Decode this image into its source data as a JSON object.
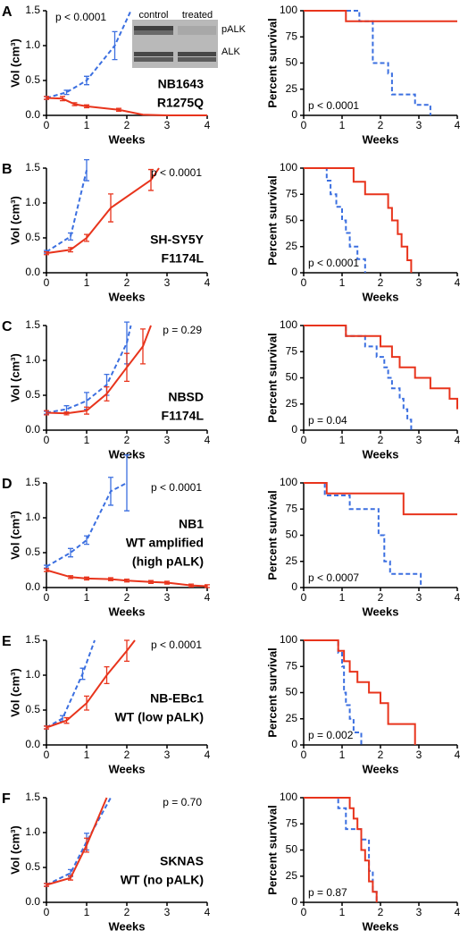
{
  "chart_data": [
    {
      "type": "line",
      "panel": "A",
      "ylabel": "Vol (cm³)",
      "xlabel": "Weeks",
      "p_value": "p < 0.0001",
      "labels": [
        "NB1643",
        "R1275Q"
      ],
      "inset": {
        "columns": [
          "control",
          "treated"
        ],
        "rows": [
          "pALK",
          "ALK"
        ]
      },
      "xlim": [
        0,
        4
      ],
      "xticks": [
        0,
        1,
        2,
        3,
        4
      ],
      "ylim": [
        0,
        1.5
      ],
      "yticks": [
        {
          "value": 0,
          "label": "0.0"
        },
        0.5,
        {
          "value": 1,
          "label": "1.0"
        },
        1.5
      ],
      "series": [
        {
          "color": "#3b6fe0",
          "dash": true,
          "x": [
            0,
            0.5,
            1.0,
            1.7,
            2.1
          ],
          "values": [
            0.25,
            0.33,
            0.5,
            1.0,
            1.5
          ],
          "errors": [
            0.02,
            0.03,
            0.06,
            0.2,
            null
          ]
        },
        {
          "color": "#e8341c",
          "dash": false,
          "x": [
            0,
            0.4,
            0.7,
            1.0,
            1.8,
            2.4,
            3.0,
            4.0
          ],
          "values": [
            0.25,
            0.24,
            0.16,
            0.13,
            0.08,
            0.01,
            0,
            0
          ],
          "errors": [
            0.02,
            0.03,
            0.02,
            0.02,
            0.02,
            null,
            null,
            null
          ]
        }
      ]
    },
    {
      "type": "step",
      "ylabel": "Percent survival",
      "xlabel": "Weeks",
      "p_value": "p < 0.0001",
      "xlim": [
        0,
        4
      ],
      "xticks": [
        0,
        1,
        2,
        3,
        4
      ],
      "ylim": [
        0,
        100
      ],
      "yticks": [
        0,
        25,
        50,
        75,
        100
      ],
      "series": [
        {
          "color": "#3b6fe0",
          "dash": true,
          "x": [
            0,
            1.45,
            1.8,
            2.2,
            2.3,
            2.9,
            3.3
          ],
          "values": [
            100,
            90,
            50,
            40,
            20,
            10,
            0
          ]
        },
        {
          "color": "#e8341c",
          "dash": false,
          "x": [
            0,
            1.1,
            4.0
          ],
          "values": [
            100,
            90,
            90
          ]
        }
      ]
    },
    {
      "type": "line",
      "panel": "B",
      "ylabel": "Vol (cm³)",
      "xlabel": "Weeks",
      "p_value": "p < 0.0001",
      "labels": [
        "SH-SY5Y",
        "F1174L"
      ],
      "xlim": [
        0,
        4
      ],
      "xticks": [
        0,
        1,
        2,
        3,
        4
      ],
      "ylim": [
        0,
        1.5
      ],
      "yticks": [
        {
          "value": 0,
          "label": "0.0"
        },
        0.5,
        {
          "value": 1,
          "label": "1.0"
        },
        1.5
      ],
      "series": [
        {
          "color": "#3b6fe0",
          "dash": true,
          "x": [
            0,
            0.6,
            1.0
          ],
          "values": [
            0.3,
            0.52,
            1.47
          ],
          "errors": [
            0.02,
            0.05,
            0.15
          ]
        },
        {
          "color": "#e8341c",
          "dash": false,
          "x": [
            0,
            0.6,
            1.0,
            1.6,
            2.6,
            2.8
          ],
          "values": [
            0.28,
            0.33,
            0.5,
            0.93,
            1.33,
            1.5
          ],
          "errors": [
            0.02,
            0.03,
            0.05,
            0.2,
            0.15,
            null
          ]
        }
      ]
    },
    {
      "type": "step",
      "ylabel": "Percent survival",
      "xlabel": "Weeks",
      "p_value": "p < 0.0001",
      "xlim": [
        0,
        4
      ],
      "xticks": [
        0,
        1,
        2,
        3,
        4
      ],
      "ylim": [
        0,
        100
      ],
      "yticks": [
        0,
        25,
        50,
        75,
        100
      ],
      "series": [
        {
          "color": "#3b6fe0",
          "dash": true,
          "x": [
            0,
            0.6,
            0.7,
            0.85,
            1.0,
            1.1,
            1.2,
            1.4,
            1.6
          ],
          "values": [
            100,
            88,
            75,
            63,
            50,
            38,
            25,
            13,
            0
          ]
        },
        {
          "color": "#e8341c",
          "dash": false,
          "x": [
            0,
            1.3,
            1.6,
            2.2,
            2.3,
            2.45,
            2.55,
            2.7,
            2.8
          ],
          "values": [
            100,
            87,
            75,
            62,
            50,
            37,
            25,
            12,
            0
          ]
        }
      ]
    },
    {
      "type": "line",
      "panel": "C",
      "ylabel": "Vol (cm³)",
      "xlabel": "Weeks",
      "p_value": "p = 0.29",
      "labels": [
        "NBSD",
        "F1174L"
      ],
      "xlim": [
        0,
        4
      ],
      "xticks": [
        0,
        1,
        2,
        3,
        4
      ],
      "ylim": [
        0,
        1.5
      ],
      "yticks": [
        {
          "value": 0,
          "label": "0.0"
        },
        0.5,
        {
          "value": 1,
          "label": "1.0"
        },
        1.5
      ],
      "series": [
        {
          "color": "#3b6fe0",
          "dash": true,
          "x": [
            0,
            0.5,
            1.0,
            1.5,
            2.0,
            2.1
          ],
          "values": [
            0.25,
            0.3,
            0.42,
            0.65,
            1.25,
            1.5
          ],
          "errors": [
            0.02,
            0.05,
            0.12,
            0.15,
            0.3,
            null
          ]
        },
        {
          "color": "#e8341c",
          "dash": false,
          "x": [
            0,
            0.5,
            1.0,
            1.5,
            2.0,
            2.4,
            2.6
          ],
          "values": [
            0.25,
            0.24,
            0.28,
            0.52,
            0.9,
            1.2,
            1.5
          ],
          "errors": [
            0.03,
            0.02,
            0.05,
            0.1,
            0.2,
            0.25,
            null
          ]
        }
      ]
    },
    {
      "type": "step",
      "ylabel": "Percent survival",
      "xlabel": "Weeks",
      "p_value": "p = 0.04",
      "xlim": [
        0,
        4
      ],
      "xticks": [
        0,
        1,
        2,
        3,
        4
      ],
      "ylim": [
        0,
        100
      ],
      "yticks": [
        0,
        25,
        50,
        75,
        100
      ],
      "series": [
        {
          "color": "#3b6fe0",
          "dash": true,
          "x": [
            0,
            1.1,
            1.6,
            1.9,
            2.1,
            2.2,
            2.3,
            2.5,
            2.6,
            2.7,
            2.8
          ],
          "values": [
            100,
            90,
            80,
            70,
            60,
            50,
            40,
            30,
            20,
            10,
            0
          ]
        },
        {
          "color": "#e8341c",
          "dash": false,
          "x": [
            0,
            1.1,
            2.0,
            2.3,
            2.5,
            2.9,
            3.3,
            3.8,
            4.0
          ],
          "values": [
            100,
            90,
            80,
            70,
            60,
            50,
            40,
            30,
            20
          ]
        }
      ]
    },
    {
      "type": "line",
      "panel": "D",
      "ylabel": "Vol (cm³)",
      "xlabel": "Weeks",
      "p_value": "p < 0.0001",
      "labels": [
        "NB1",
        "WT amplified",
        "(high pALK)"
      ],
      "xlim": [
        0,
        4
      ],
      "xticks": [
        0,
        1,
        2,
        3,
        4
      ],
      "ylim": [
        0,
        1.5
      ],
      "yticks": [
        {
          "value": 0,
          "label": "0.0"
        },
        0.5,
        {
          "value": 1,
          "label": "1.0"
        },
        1.5
      ],
      "series": [
        {
          "color": "#3b6fe0",
          "dash": true,
          "x": [
            0,
            0.6,
            1.0,
            1.6,
            2.0
          ],
          "values": [
            0.3,
            0.5,
            0.68,
            1.38,
            1.5
          ],
          "errors": [
            0.02,
            0.06,
            0.06,
            0.2,
            0.4
          ]
        },
        {
          "color": "#e8341c",
          "dash": false,
          "x": [
            0,
            0.6,
            1.0,
            1.6,
            2.0,
            2.6,
            3.0,
            3.6,
            4.0
          ],
          "values": [
            0.25,
            0.15,
            0.13,
            0.12,
            0.1,
            0.08,
            0.07,
            0.03,
            0.02
          ],
          "errors": [
            0.02,
            0.02,
            0.02,
            0.02,
            0.02,
            0.02,
            0.02,
            0.02,
            0.02
          ]
        }
      ]
    },
    {
      "type": "step",
      "ylabel": "Percent survival",
      "xlabel": "Weeks",
      "p_value": "p < 0.0007",
      "xlim": [
        0,
        4
      ],
      "xticks": [
        0,
        1,
        2,
        3,
        4
      ],
      "ylim": [
        0,
        100
      ],
      "yticks": [
        0,
        25,
        50,
        75,
        100
      ],
      "series": [
        {
          "color": "#3b6fe0",
          "dash": true,
          "x": [
            0,
            0.55,
            1.2,
            1.95,
            2.1,
            2.25,
            3.05
          ],
          "values": [
            100,
            88,
            75,
            50,
            25,
            13,
            0
          ]
        },
        {
          "color": "#e8341c",
          "dash": false,
          "x": [
            0,
            0.6,
            2.6,
            4.0
          ],
          "values": [
            100,
            90,
            70,
            70
          ]
        }
      ]
    },
    {
      "type": "line",
      "panel": "E",
      "ylabel": "Vol (cm³)",
      "xlabel": "Weeks",
      "p_value": "p < 0.0001",
      "labels": [
        "NB-EBc1",
        "WT (low pALK)"
      ],
      "xlim": [
        0,
        4
      ],
      "xticks": [
        0,
        1,
        2,
        3,
        4
      ],
      "ylim": [
        0,
        1.5
      ],
      "yticks": [
        {
          "value": 0,
          "label": "0.0"
        },
        0.5,
        {
          "value": 1,
          "label": "1.0"
        },
        1.5
      ],
      "series": [
        {
          "color": "#3b6fe0",
          "dash": true,
          "x": [
            0,
            0.4,
            0.9,
            1.2
          ],
          "values": [
            0.25,
            0.38,
            1.02,
            1.5
          ],
          "errors": [
            0.02,
            0.04,
            0.08,
            null
          ]
        },
        {
          "color": "#e8341c",
          "dash": false,
          "x": [
            0,
            0.5,
            1.0,
            1.5,
            2.0,
            2.2
          ],
          "values": [
            0.25,
            0.35,
            0.6,
            1.0,
            1.35,
            1.5
          ],
          "errors": [
            0.02,
            0.04,
            0.1,
            0.12,
            0.15,
            null
          ]
        }
      ]
    },
    {
      "type": "step",
      "ylabel": "Percent survival",
      "xlabel": "Weeks",
      "p_value": "p = 0.002",
      "xlim": [
        0,
        4
      ],
      "xticks": [
        0,
        1,
        2,
        3,
        4
      ],
      "ylim": [
        0,
        100
      ],
      "yticks": [
        0,
        25,
        50,
        75,
        100
      ],
      "series": [
        {
          "color": "#3b6fe0",
          "dash": true,
          "x": [
            0,
            0.9,
            1.0,
            1.05,
            1.1,
            1.2,
            1.3,
            1.5
          ],
          "values": [
            100,
            88,
            75,
            50,
            38,
            25,
            12,
            0
          ]
        },
        {
          "color": "#e8341c",
          "dash": false,
          "x": [
            0,
            0.9,
            1.05,
            1.2,
            1.4,
            1.7,
            2.0,
            2.2,
            2.9
          ],
          "values": [
            100,
            90,
            80,
            70,
            60,
            50,
            40,
            20,
            0
          ]
        }
      ]
    },
    {
      "type": "line",
      "panel": "F",
      "ylabel": "Vol (cm³)",
      "xlabel": "Weeks",
      "p_value": "p = 0.70",
      "labels": [
        "SKNAS",
        "WT (no pALK)"
      ],
      "xlim": [
        0,
        4
      ],
      "xticks": [
        0,
        1,
        2,
        3,
        4
      ],
      "ylim": [
        0,
        1.5
      ],
      "yticks": [
        {
          "value": 0,
          "label": "0.0"
        },
        0.5,
        {
          "value": 1,
          "label": "1.0"
        },
        1.5
      ],
      "series": [
        {
          "color": "#3b6fe0",
          "dash": true,
          "x": [
            0,
            0.6,
            1.0,
            1.6
          ],
          "values": [
            0.25,
            0.42,
            0.87,
            1.5
          ],
          "errors": [
            0.02,
            0.05,
            0.12,
            null
          ]
        },
        {
          "color": "#e8341c",
          "dash": false,
          "x": [
            0,
            0.6,
            1.0,
            1.5
          ],
          "values": [
            0.25,
            0.35,
            0.82,
            1.5
          ],
          "errors": [
            0.02,
            0.03,
            0.1,
            null
          ]
        }
      ]
    },
    {
      "type": "step",
      "ylabel": "Percent survival",
      "xlabel": "Weeks",
      "p_value": "p = 0.87",
      "xlim": [
        0,
        4
      ],
      "xticks": [
        0,
        1,
        2,
        3,
        4
      ],
      "ylim": [
        0,
        100
      ],
      "yticks": [
        0,
        25,
        50,
        75,
        100
      ],
      "series": [
        {
          "color": "#3b6fe0",
          "dash": true,
          "x": [
            0,
            0.9,
            1.1,
            1.5,
            1.7,
            1.8,
            1.9
          ],
          "values": [
            100,
            90,
            70,
            60,
            30,
            10,
            0
          ]
        },
        {
          "color": "#e8341c",
          "dash": false,
          "x": [
            0,
            1.2,
            1.3,
            1.4,
            1.5,
            1.6,
            1.7,
            1.8,
            1.9
          ],
          "values": [
            100,
            90,
            80,
            70,
            50,
            40,
            20,
            10,
            0
          ]
        }
      ]
    }
  ]
}
